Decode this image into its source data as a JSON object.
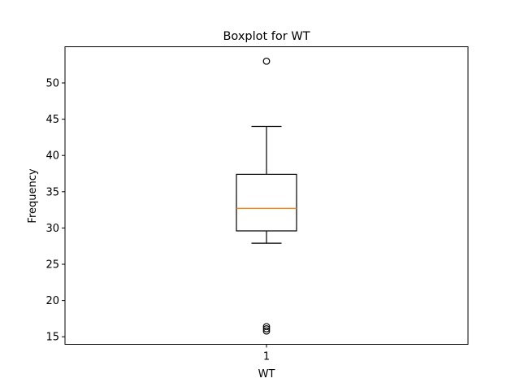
{
  "chart_data": {
    "type": "boxplot",
    "title": "Boxplot for WT",
    "xlabel": "WT",
    "ylabel": "Frequency",
    "ylim": [
      13.96,
      54.99
    ],
    "yticks": [
      15,
      20,
      25,
      30,
      35,
      40,
      45,
      50
    ],
    "categories": [
      "1"
    ],
    "grid": false,
    "boxes": [
      {
        "category": "1",
        "whisker_low": 27.9,
        "q1": 29.6,
        "median": 32.7,
        "q3": 37.4,
        "whisker_high": 44.0,
        "outliers": [
          53.0,
          16.4,
          16.1,
          15.8
        ]
      }
    ],
    "colors": {
      "box": "#000000",
      "median": "#ff7f0e",
      "whisker": "#000000",
      "outlier": "#000000"
    }
  }
}
